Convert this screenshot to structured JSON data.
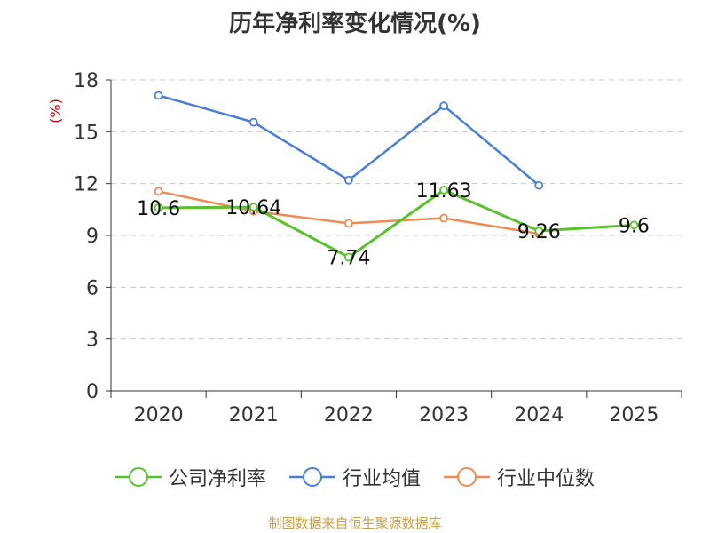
{
  "title": "历年净利率变化情况(%)",
  "source": "制图数据来自恒生聚源数据库",
  "chart_data": {
    "type": "line",
    "categories": [
      "2020",
      "2021",
      "2022",
      "2023",
      "2024",
      "2025"
    ],
    "ylabel": "(%)",
    "ylim": [
      0,
      18
    ],
    "yticks": [
      0,
      3,
      6,
      9,
      12,
      15,
      18
    ],
    "grid": true,
    "legend_position": "bottom",
    "series": [
      {
        "name": "公司净利率",
        "color": "#5ac12e",
        "values": [
          10.6,
          10.64,
          7.74,
          11.63,
          9.26,
          9.6
        ],
        "labels": [
          "10.6",
          "10.64",
          "7.74",
          "11.63",
          "9.26",
          "9.6"
        ]
      },
      {
        "name": "行业均值",
        "color": "#4a7fd6",
        "values": [
          17.1,
          15.55,
          12.2,
          16.5,
          11.9,
          null
        ]
      },
      {
        "name": "行业中位数",
        "color": "#f08a55",
        "values": [
          11.55,
          10.4,
          9.7,
          10.0,
          9.1,
          null
        ]
      }
    ]
  }
}
